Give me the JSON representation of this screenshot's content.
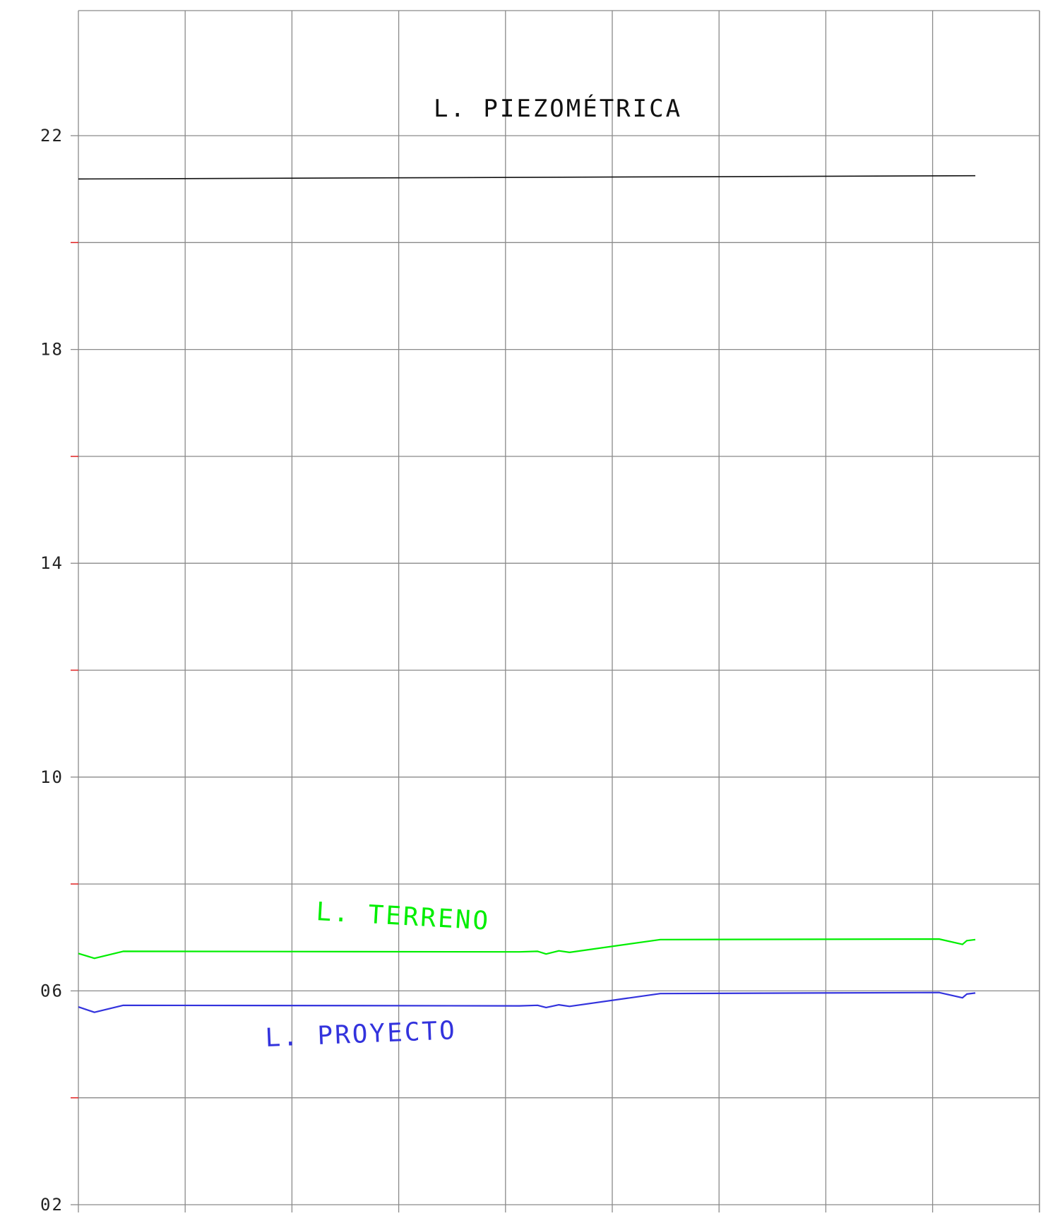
{
  "chart_data": {
    "type": "line",
    "title": "",
    "xlabel": "",
    "ylabel": "",
    "ylim": [
      2,
      22
    ],
    "xlim": [
      0,
      9
    ],
    "yticks": [
      {
        "value": 22,
        "label": "22"
      },
      {
        "value": 18,
        "label": "18"
      },
      {
        "value": 14,
        "label": "14"
      },
      {
        "value": 10,
        "label": "10"
      },
      {
        "value": 6,
        "label": "06"
      },
      {
        "value": 2,
        "label": "02"
      }
    ],
    "minor_ticks": [
      20,
      16,
      12,
      8,
      4
    ],
    "grid": true,
    "series": [
      {
        "name": "L. PIEZOMÉTRICA",
        "color": "#111111",
        "x": [
          0,
          8.4
        ],
        "y": [
          21.19,
          21.25
        ]
      },
      {
        "name": "L. TERRENO",
        "color": "#00ee00",
        "x": [
          0,
          0.15,
          0.42,
          4.13,
          4.3,
          4.38,
          4.5,
          4.6,
          5.45,
          8.06,
          8.28,
          8.32,
          8.4
        ],
        "y": [
          6.7,
          6.61,
          6.74,
          6.73,
          6.74,
          6.69,
          6.75,
          6.72,
          6.96,
          6.97,
          6.87,
          6.94,
          6.96
        ]
      },
      {
        "name": "L. PROYECTO",
        "color": "#3333dd",
        "x": [
          0,
          0.15,
          0.42,
          4.13,
          4.3,
          4.38,
          4.5,
          4.6,
          5.45,
          8.06,
          8.28,
          8.32,
          8.4
        ],
        "y": [
          5.7,
          5.6,
          5.73,
          5.72,
          5.73,
          5.69,
          5.74,
          5.71,
          5.95,
          5.97,
          5.87,
          5.94,
          5.96
        ]
      }
    ],
    "annotations": [
      {
        "text": "L. PIEZOMÉTRICA",
        "color": "#111111"
      },
      {
        "text": "L. TERRENO",
        "color": "#00ee00"
      },
      {
        "text": "L. PROYECTO",
        "color": "#3333dd"
      }
    ]
  }
}
